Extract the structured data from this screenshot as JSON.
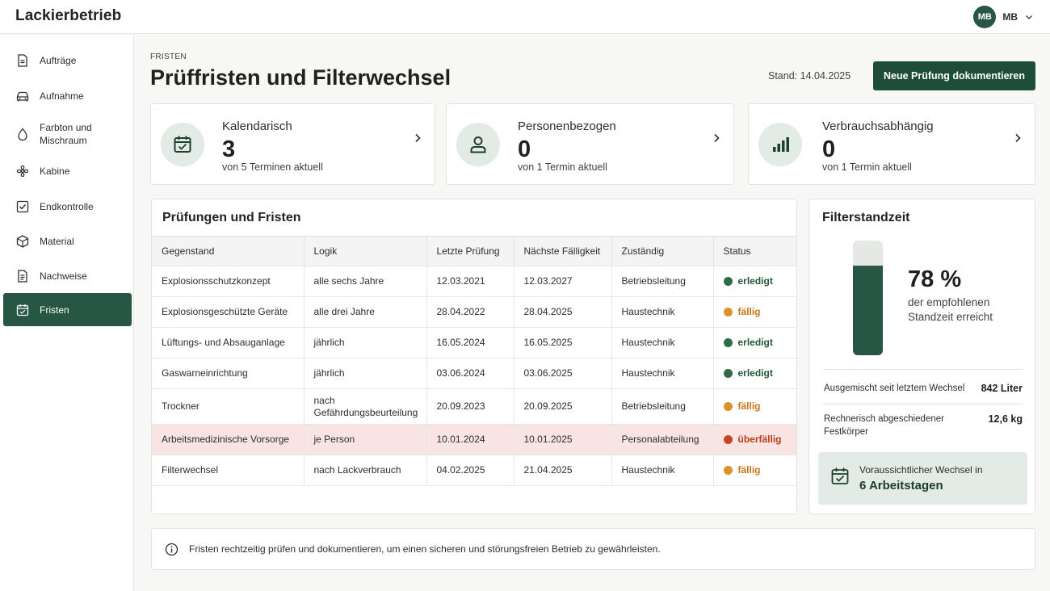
{
  "app": {
    "brand": "Lackierbetrieb"
  },
  "user": {
    "avatar_initials": "MB",
    "name_initials": "MB"
  },
  "sidebar": {
    "items": [
      {
        "label": "Aufträge",
        "icon": "document-icon"
      },
      {
        "label": "Aufnahme",
        "icon": "car-icon"
      },
      {
        "label": "Farbton und Mischraum",
        "icon": "drop-icon"
      },
      {
        "label": "Kabine",
        "icon": "fan-icon"
      },
      {
        "label": "Endkontrolle",
        "icon": "checkbox-icon"
      },
      {
        "label": "Material",
        "icon": "box-icon"
      },
      {
        "label": "Nachweise",
        "icon": "file-text-icon"
      },
      {
        "label": "Fristen",
        "icon": "calendar-icon",
        "active": true
      }
    ]
  },
  "header": {
    "breadcrumb": "FRISTEN",
    "title": "Prüffristen und Filterwechsel",
    "stand": "Stand: 14.04.2025",
    "primary_button": "Neue Prüfung dokumentieren"
  },
  "summary_cards": [
    {
      "title": "Kalendarisch",
      "value": "3",
      "sub": "von 5 Terminen aktuell",
      "icon": "calendar-check-icon"
    },
    {
      "title": "Personenbezogen",
      "value": "0",
      "sub": "von 1 Termin aktuell",
      "icon": "person-icon"
    },
    {
      "title": "Verbrauchsabhängig",
      "value": "0",
      "sub": "von 1 Termin aktuell",
      "icon": "bar-chart-icon"
    }
  ],
  "checks": {
    "title": "Prüfungen und Fristen",
    "columns": [
      "Gegenstand",
      "Logik",
      "Letzte Prüfung",
      "Nächste Fälligkeit",
      "Zuständig",
      "Status"
    ],
    "rows": [
      {
        "item": "Explosionsschutzkonzept",
        "logic": "alle sechs Jahre",
        "last": "12.03.2021",
        "next": "12.03.2027",
        "owner": "Betriebsleitung",
        "status": "erledigt"
      },
      {
        "item": "Explosionsgeschützte Geräte",
        "logic": "alle drei Jahre",
        "last": "28.04.2022",
        "next": "28.04.2025",
        "owner": "Haustechnik",
        "status": "fällig"
      },
      {
        "item": "Lüftungs- und Absauganlage",
        "logic": "jährlich",
        "last": "16.05.2024",
        "next": "16.05.2025",
        "owner": "Haustechnik",
        "status": "erledigt"
      },
      {
        "item": "Gaswarneinrichtung",
        "logic": "jährlich",
        "last": "03.06.2024",
        "next": "03.06.2025",
        "owner": "Haustechnik",
        "status": "erledigt"
      },
      {
        "item": "Trockner",
        "logic": "nach Gefährdungsbeurteilung",
        "last": "20.09.2023",
        "next": "20.09.2025",
        "owner": "Betriebsleitung",
        "status": "fällig"
      },
      {
        "item": "Arbeitsmedizinische Vorsorge",
        "logic": "je Person",
        "last": "10.01.2024",
        "next": "10.01.2025",
        "owner": "Personalabteilung",
        "status": "überfällig"
      },
      {
        "item": "Filterwechsel",
        "logic": "nach Lackverbrauch",
        "last": "04.02.2025",
        "next": "21.04.2025",
        "owner": "Haustechnik",
        "status": "fällig"
      }
    ],
    "status_colors": {
      "erledigt": "#2f6b45",
      "fällig": "#e0902a",
      "überfällig": "#c8461f"
    },
    "status_text_colors": {
      "erledigt": "#23573a",
      "fällig": "#c77718",
      "überfällig": "#bf3b17"
    }
  },
  "filter": {
    "title": "Filterstandzeit",
    "percent_value": 0.78,
    "percent_label": "78 %",
    "percent_sub": "der empfohlenen Standzeit erreicht",
    "mixed_label": "Ausgemischt seit letztem Wechsel",
    "mixed_value": "842 Liter",
    "solids_label": "Rechnerisch abgeschiedener Festkörper",
    "solids_value": "12,6 kg",
    "next_label": "Voraussichtlicher Wechsel in",
    "next_value": "6 Arbeitstagen"
  },
  "info": {
    "text": "Fristen rechtzeitig prüfen und dokumentieren, um einen sicheren und störungsfreien Betrieb zu gewährleisten."
  },
  "colors": {
    "accent": "#275644",
    "button": "#1e4d3b",
    "highlight_row": "#f8e4e3"
  }
}
